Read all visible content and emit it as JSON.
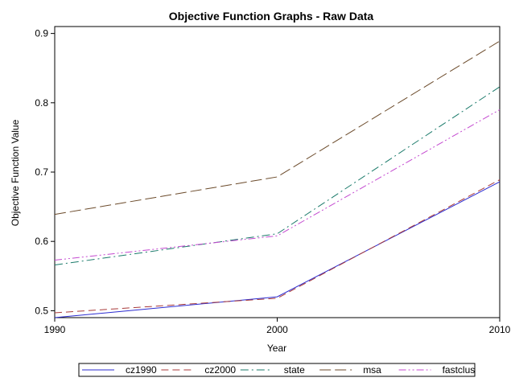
{
  "chart_data": {
    "type": "line",
    "title": "Objective Function Graphs - Raw Data",
    "xlabel": "Year",
    "ylabel": "Objective Function Value",
    "x": [
      1990,
      2000,
      2010
    ],
    "xlim": [
      1990,
      2010
    ],
    "ylim": [
      0.49,
      0.91
    ],
    "xticks": [
      "1990",
      "2000",
      "2010"
    ],
    "yticks": [
      "0.5",
      "0.6",
      "0.7",
      "0.8",
      "0.9"
    ],
    "grid": false,
    "legend_position": "bottom",
    "series": [
      {
        "name": "cz1990",
        "values": [
          0.49,
          0.52,
          0.686
        ],
        "color": "#2b2bd0",
        "dash": "solid"
      },
      {
        "name": "cz2000",
        "values": [
          0.497,
          0.518,
          0.689
        ],
        "color": "#a83a3a",
        "dash": "dash"
      },
      {
        "name": "state",
        "values": [
          0.566,
          0.611,
          0.823
        ],
        "color": "#1a7a6a",
        "dash": "dashdot"
      },
      {
        "name": "msa",
        "values": [
          0.639,
          0.693,
          0.889
        ],
        "color": "#6b4a2a",
        "dash": "longdash"
      },
      {
        "name": "fastclus",
        "values": [
          0.573,
          0.608,
          0.79
        ],
        "color": "#c44ad0",
        "dash": "dashdotdot"
      }
    ]
  }
}
